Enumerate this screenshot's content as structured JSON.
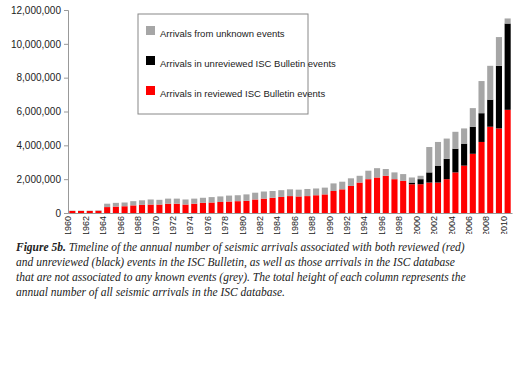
{
  "chart_data": {
    "type": "bar",
    "stacked": true,
    "legend": "top-left",
    "caption": {
      "lead": "Figure 5b.",
      "text": "Timeline of the annual number of seismic arrivals associated with both reviewed (red) and unreviewed (black) events in the ISC Bulletin, as well as those arrivals in the ISC database that are not associated to any known events (grey). The total height of each column represents the annual number of all seismic arrivals in the ISC database."
    },
    "categories": [
      "1960",
      null,
      "1962",
      null,
      "1964",
      null,
      "1966",
      null,
      "1968",
      null,
      "1970",
      null,
      "1972",
      null,
      "1974",
      null,
      "1976",
      null,
      "1978",
      null,
      "1980",
      null,
      "1982",
      null,
      "1984",
      null,
      "1986",
      null,
      "1988",
      null,
      "1990",
      null,
      "1992",
      null,
      "1994",
      null,
      "1996",
      null,
      "1998",
      null,
      "2000",
      null,
      "2002",
      null,
      "2004",
      null,
      "2006",
      null,
      "2008",
      null,
      "2010"
    ],
    "series": [
      {
        "name": "Arrivals in reviewed ISC Bulletin events",
        "color": "#ff0000",
        "values": [
          120000,
          120000,
          120000,
          130000,
          350000,
          380000,
          400000,
          450000,
          480000,
          500000,
          500000,
          550000,
          550000,
          500000,
          550000,
          600000,
          620000,
          650000,
          680000,
          700000,
          720000,
          800000,
          850000,
          900000,
          950000,
          1000000,
          980000,
          1000000,
          1050000,
          1100000,
          1300000,
          1400000,
          1600000,
          1800000,
          2000000,
          2100000,
          2200000,
          2000000,
          1900000,
          1700000,
          1700000,
          1800000,
          1800000,
          2000000,
          2400000,
          2800000,
          3500000,
          4200000,
          5100000,
          5000000,
          6100000
        ]
      },
      {
        "name": "Arrivals in unreviewed ISC Bulletin events",
        "color": "#000000",
        "values": [
          0,
          0,
          0,
          0,
          0,
          0,
          0,
          0,
          0,
          0,
          0,
          0,
          0,
          0,
          0,
          0,
          0,
          0,
          0,
          0,
          0,
          0,
          0,
          0,
          0,
          0,
          0,
          0,
          0,
          0,
          0,
          0,
          0,
          0,
          0,
          0,
          0,
          0,
          0,
          100000,
          300000,
          600000,
          1000000,
          1200000,
          1400000,
          1300000,
          1600000,
          1700000,
          1600000,
          3700000,
          5100000
        ]
      },
      {
        "name": "Arrivals from unknown events",
        "color": "#a6a6a6",
        "values": [
          20000,
          20000,
          20000,
          30000,
          200000,
          220000,
          220000,
          250000,
          270000,
          300000,
          280000,
          300000,
          300000,
          300000,
          300000,
          300000,
          320000,
          330000,
          350000,
          350000,
          380000,
          400000,
          420000,
          400000,
          400000,
          400000,
          400000,
          420000,
          400000,
          400000,
          450000,
          450000,
          450000,
          400000,
          500000,
          550000,
          400000,
          400000,
          400000,
          300000,
          200000,
          1500000,
          1400000,
          1200000,
          1000000,
          900000,
          1100000,
          1900000,
          2000000,
          1700000,
          300000
        ]
      }
    ],
    "ylim": [
      0,
      12000000
    ],
    "yticks": [
      0,
      {
        "value": 2000000,
        "label": "2,000,000"
      },
      {
        "value": 4000000,
        "label": "4,000,000"
      },
      {
        "value": 6000000,
        "label": "6,000,000"
      },
      {
        "value": 8000000,
        "label": "8,000,000"
      },
      {
        "value": 10000000,
        "label": "10,000,000"
      },
      {
        "value": 12000000,
        "label": "12,000,000"
      }
    ]
  }
}
